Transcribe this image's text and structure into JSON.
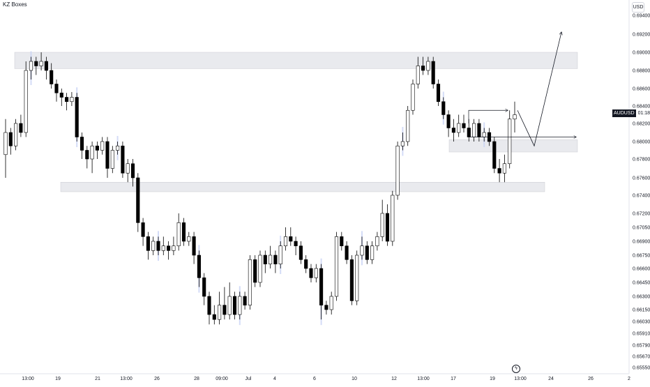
{
  "indicator_label": "KZ Boxes",
  "currency": "USD",
  "price_tag": {
    "symbol": "AUDUSD",
    "time": "01:18:04"
  },
  "goto_icon": "lightning-icon",
  "colors": {
    "up_candle": "#ffffff",
    "down_candle": "#000000",
    "wick": "#000000",
    "zone_fill": "#e9eaee",
    "zone_border": "#c9cbd1",
    "highlight_bar": "#c9d3f5",
    "axis_text": "#131722"
  },
  "chart_data": {
    "type": "candlestick",
    "title": "",
    "y_axis": {
      "position": "right",
      "ticks": [
        0.694,
        0.692,
        0.69,
        0.688,
        0.686,
        0.684,
        0.682,
        0.68,
        0.678,
        0.676,
        0.674,
        0.672,
        0.6705,
        0.669,
        0.6675,
        0.666,
        0.6645,
        0.663,
        0.6615,
        0.6603,
        0.6591,
        0.6579,
        0.6567,
        0.6555
      ],
      "tick_labels": [
        "0.69400",
        "0.69200",
        "0.69000",
        "0.68800",
        "0.68600",
        "0.68400",
        "0.68200",
        "0.68000",
        "0.67800",
        "0.67600",
        "0.67400",
        "0.67200",
        "0.67050",
        "0.66900",
        "0.66750",
        "0.66600",
        "0.66450",
        "0.66300",
        "0.66150",
        "0.66030",
        "0.65910",
        "0.65790",
        "0.65670",
        "0.65550"
      ]
    },
    "x_axis": {
      "ticks": [
        "13:00",
        "19",
        "21",
        "13:00",
        "26",
        "28",
        "09:00",
        "Jul",
        "4",
        "6",
        "10",
        "12",
        "13:00",
        "17",
        "19",
        "13:00",
        "24",
        "26",
        "2"
      ]
    },
    "zones": [
      {
        "top": 0.69,
        "bottom": 0.6882,
        "label": ""
      },
      {
        "top": 0.6755,
        "bottom": 0.6744,
        "label": ""
      },
      {
        "top": 0.6802,
        "bottom": 0.6788,
        "label": ""
      }
    ],
    "arrows": [
      {
        "from": [
          0.6802,
          0.6802
        ],
        "to": [
          0.682,
          0.682
        ]
      },
      {
        "to_price": 0.6925
      }
    ],
    "candles": [
      [
        0.6785,
        0.681,
        0.676,
        0.6825
      ],
      [
        0.681,
        0.6795,
        0.6785,
        0.6815
      ],
      [
        0.6795,
        0.682,
        0.679,
        0.6825
      ],
      [
        0.682,
        0.681,
        0.6805,
        0.683
      ],
      [
        0.681,
        0.688,
        0.6805,
        0.689
      ],
      [
        0.688,
        0.689,
        0.687,
        0.6895
      ],
      [
        0.689,
        0.6885,
        0.6875,
        0.6895
      ],
      [
        0.6885,
        0.689,
        0.688,
        0.69
      ],
      [
        0.689,
        0.688,
        0.687,
        0.6895
      ],
      [
        0.688,
        0.6865,
        0.686,
        0.6888
      ],
      [
        0.6865,
        0.6855,
        0.6845,
        0.687
      ],
      [
        0.6855,
        0.685,
        0.684,
        0.686
      ],
      [
        0.685,
        0.6845,
        0.6835,
        0.6855
      ],
      [
        0.6845,
        0.685,
        0.684,
        0.6856
      ],
      [
        0.685,
        0.6805,
        0.68,
        0.6855
      ],
      [
        0.6805,
        0.679,
        0.678,
        0.681
      ],
      [
        0.679,
        0.678,
        0.677,
        0.6795
      ],
      [
        0.678,
        0.6795,
        0.6765,
        0.68
      ],
      [
        0.6795,
        0.679,
        0.678,
        0.68
      ],
      [
        0.679,
        0.68,
        0.6785,
        0.6805
      ],
      [
        0.68,
        0.677,
        0.676,
        0.6805
      ],
      [
        0.677,
        0.679,
        0.6765,
        0.6795
      ],
      [
        0.679,
        0.6795,
        0.6785,
        0.68
      ],
      [
        0.6795,
        0.6765,
        0.676,
        0.68
      ],
      [
        0.6765,
        0.6775,
        0.6755,
        0.678
      ],
      [
        0.6775,
        0.676,
        0.675,
        0.678
      ],
      [
        0.676,
        0.671,
        0.67,
        0.6765
      ],
      [
        0.671,
        0.6695,
        0.6685,
        0.6715
      ],
      [
        0.6695,
        0.668,
        0.667,
        0.67
      ],
      [
        0.668,
        0.669,
        0.6675,
        0.6695
      ],
      [
        0.669,
        0.668,
        0.6675,
        0.6695
      ],
      [
        0.668,
        0.6685,
        0.6675,
        0.6695
      ],
      [
        0.6685,
        0.668,
        0.667,
        0.669
      ],
      [
        0.668,
        0.6685,
        0.6675,
        0.6695
      ],
      [
        0.6685,
        0.671,
        0.668,
        0.672
      ],
      [
        0.671,
        0.669,
        0.6685,
        0.6715
      ],
      [
        0.669,
        0.6695,
        0.6685,
        0.67
      ],
      [
        0.6695,
        0.6675,
        0.6665,
        0.67
      ],
      [
        0.6675,
        0.665,
        0.664,
        0.668
      ],
      [
        0.665,
        0.663,
        0.662,
        0.6655
      ],
      [
        0.663,
        0.661,
        0.66,
        0.6635
      ],
      [
        0.661,
        0.6605,
        0.66,
        0.662
      ],
      [
        0.6605,
        0.662,
        0.66,
        0.6635
      ],
      [
        0.662,
        0.661,
        0.6605,
        0.664
      ],
      [
        0.661,
        0.663,
        0.6605,
        0.6645
      ],
      [
        0.663,
        0.661,
        0.6605,
        0.6635
      ],
      [
        0.661,
        0.663,
        0.6605,
        0.6635
      ],
      [
        0.663,
        0.662,
        0.6615,
        0.6635
      ],
      [
        0.662,
        0.667,
        0.6615,
        0.6675
      ],
      [
        0.667,
        0.6645,
        0.664,
        0.6675
      ],
      [
        0.6645,
        0.6675,
        0.664,
        0.668
      ],
      [
        0.6675,
        0.6665,
        0.6655,
        0.668
      ],
      [
        0.6665,
        0.6675,
        0.666,
        0.6685
      ],
      [
        0.6675,
        0.6665,
        0.6655,
        0.668
      ],
      [
        0.6665,
        0.6685,
        0.666,
        0.669
      ],
      [
        0.6685,
        0.6695,
        0.668,
        0.6705
      ],
      [
        0.6695,
        0.669,
        0.6685,
        0.6705
      ],
      [
        0.669,
        0.6685,
        0.6675,
        0.6695
      ],
      [
        0.6685,
        0.667,
        0.6665,
        0.669
      ],
      [
        0.667,
        0.666,
        0.6655,
        0.6675
      ],
      [
        0.666,
        0.665,
        0.6645,
        0.6665
      ],
      [
        0.665,
        0.666,
        0.6645,
        0.6665
      ],
      [
        0.666,
        0.662,
        0.6605,
        0.6665
      ],
      [
        0.662,
        0.6615,
        0.661,
        0.6625
      ],
      [
        0.6615,
        0.663,
        0.661,
        0.6635
      ],
      [
        0.663,
        0.6695,
        0.6625,
        0.67
      ],
      [
        0.6695,
        0.6685,
        0.668,
        0.67
      ],
      [
        0.6685,
        0.667,
        0.6665,
        0.669
      ],
      [
        0.667,
        0.6625,
        0.662,
        0.6675
      ],
      [
        0.6625,
        0.6675,
        0.662,
        0.668
      ],
      [
        0.6675,
        0.6685,
        0.667,
        0.6695
      ],
      [
        0.6685,
        0.667,
        0.6665,
        0.669
      ],
      [
        0.667,
        0.6685,
        0.6665,
        0.669
      ],
      [
        0.6685,
        0.6695,
        0.668,
        0.67
      ],
      [
        0.6695,
        0.672,
        0.669,
        0.6735
      ],
      [
        0.672,
        0.669,
        0.6685,
        0.673
      ],
      [
        0.669,
        0.674,
        0.6685,
        0.6745
      ],
      [
        0.674,
        0.6795,
        0.6735,
        0.68
      ],
      [
        0.6795,
        0.68,
        0.679,
        0.681
      ],
      [
        0.68,
        0.6835,
        0.6795,
        0.684
      ],
      [
        0.6835,
        0.6865,
        0.683,
        0.687
      ],
      [
        0.6865,
        0.6885,
        0.686,
        0.6895
      ],
      [
        0.6885,
        0.688,
        0.6875,
        0.6895
      ],
      [
        0.688,
        0.689,
        0.6875,
        0.6895
      ],
      [
        0.689,
        0.6865,
        0.686,
        0.6895
      ],
      [
        0.6865,
        0.6845,
        0.684,
        0.687
      ],
      [
        0.6845,
        0.683,
        0.6825,
        0.685
      ],
      [
        0.683,
        0.6815,
        0.6805,
        0.6835
      ],
      [
        0.6815,
        0.681,
        0.68,
        0.6825
      ],
      [
        0.681,
        0.682,
        0.6805,
        0.683
      ],
      [
        0.682,
        0.6815,
        0.681,
        0.683
      ],
      [
        0.6815,
        0.6805,
        0.68,
        0.6825
      ],
      [
        0.6805,
        0.682,
        0.68,
        0.6825
      ],
      [
        0.682,
        0.6805,
        0.68,
        0.6825
      ],
      [
        0.6805,
        0.681,
        0.68,
        0.6815
      ],
      [
        0.681,
        0.68,
        0.6795,
        0.6815
      ],
      [
        0.68,
        0.677,
        0.6765,
        0.6805
      ],
      [
        0.677,
        0.6765,
        0.6755,
        0.678
      ],
      [
        0.6765,
        0.6775,
        0.6755,
        0.6785
      ],
      [
        0.6775,
        0.6825,
        0.677,
        0.6835
      ],
      [
        0.6825,
        0.683,
        0.681,
        0.6845
      ]
    ]
  }
}
